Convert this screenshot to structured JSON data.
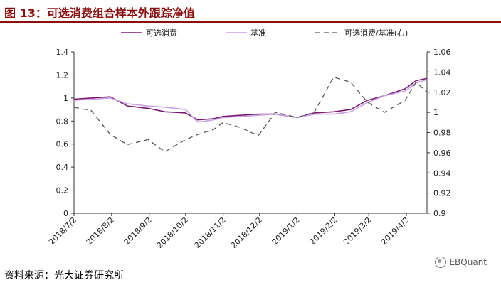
{
  "header": {
    "title": "图 13：可选消费组合样本外跟踪净值"
  },
  "footer": {
    "source": "资料来源：光大证券研究所",
    "watermark": "EBQuant"
  },
  "colors": {
    "title": "#8b0e0e",
    "series1": "#7a1a6e",
    "series2": "#c8a0e6",
    "series3": "#555555"
  },
  "chart_data": {
    "type": "line",
    "x_tick_labels": [
      "2018/7/2",
      "2018/8/2",
      "2018/9/2",
      "2018/10/2",
      "2018/11/2",
      "2018/12/2",
      "2019/1/2",
      "2019/2/2",
      "2019/3/2",
      "2019/4/2"
    ],
    "y_left": {
      "ylim": [
        0,
        1.4
      ],
      "ticks": [
        "0",
        "0.2",
        "0.4",
        "0.6",
        "0.8",
        "1",
        "1.2",
        "1.4"
      ]
    },
    "y_right": {
      "ylim": [
        0.9,
        1.06
      ],
      "ticks": [
        "0.9",
        "0.92",
        "0.94",
        "0.96",
        "0.98",
        "1",
        "1.02",
        "1.04",
        "1.06"
      ]
    },
    "legend": [
      "可选消费",
      "基准",
      "可选消费/基准(右)"
    ],
    "grid": false,
    "x": [
      "2018-07-02",
      "2018-07-16",
      "2018-08-01",
      "2018-08-15",
      "2018-09-01",
      "2018-09-15",
      "2018-10-02",
      "2018-10-12",
      "2018-10-25",
      "2018-11-02",
      "2018-11-16",
      "2018-12-01",
      "2018-12-15",
      "2019-01-02",
      "2019-01-16",
      "2019-02-01",
      "2019-02-15",
      "2019-03-01",
      "2019-03-15",
      "2019-04-01",
      "2019-04-10",
      "2019-04-19"
    ],
    "series": [
      {
        "name": "可选消费",
        "axis": "left",
        "values": [
          0.99,
          1.0,
          1.01,
          0.93,
          0.91,
          0.88,
          0.87,
          0.81,
          0.82,
          0.84,
          0.85,
          0.86,
          0.86,
          0.83,
          0.87,
          0.88,
          0.9,
          0.98,
          1.02,
          1.08,
          1.15,
          1.17
        ]
      },
      {
        "name": "基准",
        "axis": "left",
        "values": [
          0.98,
          0.99,
          1.0,
          0.95,
          0.93,
          0.92,
          0.9,
          0.79,
          0.81,
          0.83,
          0.84,
          0.85,
          0.86,
          0.83,
          0.86,
          0.86,
          0.88,
          0.96,
          1.02,
          1.06,
          1.13,
          1.16
        ]
      },
      {
        "name": "可选消费/基准(右)",
        "axis": "right",
        "values": [
          1.005,
          1.002,
          0.978,
          0.968,
          0.973,
          0.961,
          0.973,
          0.978,
          0.983,
          0.99,
          0.985,
          0.977,
          1.0,
          0.995,
          1.0,
          1.035,
          1.03,
          1.01,
          1.0,
          1.012,
          1.03,
          1.02
        ]
      }
    ]
  }
}
